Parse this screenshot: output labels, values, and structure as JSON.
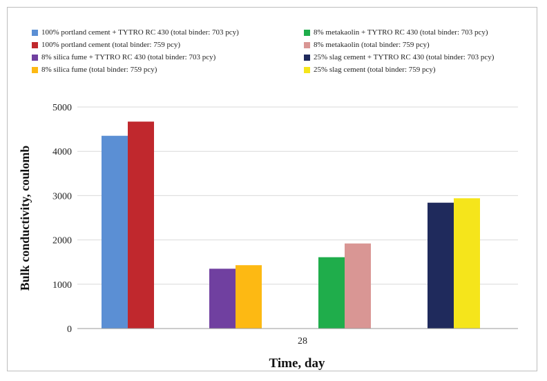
{
  "chart_data": {
    "type": "bar",
    "title": "",
    "xlabel": "Time, day",
    "ylabel": "Bulk conductivity, coulomb",
    "categories": [
      "28"
    ],
    "ylim": [
      0,
      5000
    ],
    "yticks": [
      0,
      1000,
      2000,
      3000,
      4000,
      5000
    ],
    "grid": true,
    "legend_position": "top",
    "series": [
      {
        "name": "100% portland cement + TYTRO RC 430 (total binder: 703 pcy)",
        "color": "#5b8fd4",
        "values": [
          4350
        ]
      },
      {
        "name": "100% portland cement (total binder: 759 pcy)",
        "color": "#c0282d",
        "values": [
          4670
        ]
      },
      {
        "name": "8% silica fume + TYTRO RC 430 (total binder: 703 pcy)",
        "color": "#7040a0",
        "values": [
          1350
        ]
      },
      {
        "name": "8% silica fume (total binder: 759 pcy)",
        "color": "#fdb913",
        "values": [
          1430
        ]
      },
      {
        "name": "8% metakaolin + TYTRO RC 430 (total binder: 703 pcy)",
        "color": "#1fad4b",
        "values": [
          1610
        ]
      },
      {
        "name": "8% metakaolin (total binder: 759 pcy)",
        "color": "#d99694",
        "values": [
          1920
        ]
      },
      {
        "name": "25% slag cement + TYTRO RC 430 (total binder: 703 pcy)",
        "color": "#1f2a5c",
        "values": [
          2840
        ]
      },
      {
        "name": "25% slag cement (total binder: 759 pcy)",
        "color": "#f5e51b",
        "values": [
          2940
        ]
      }
    ],
    "legend_order": [
      0,
      1,
      2,
      3,
      4,
      5,
      6,
      7
    ]
  }
}
